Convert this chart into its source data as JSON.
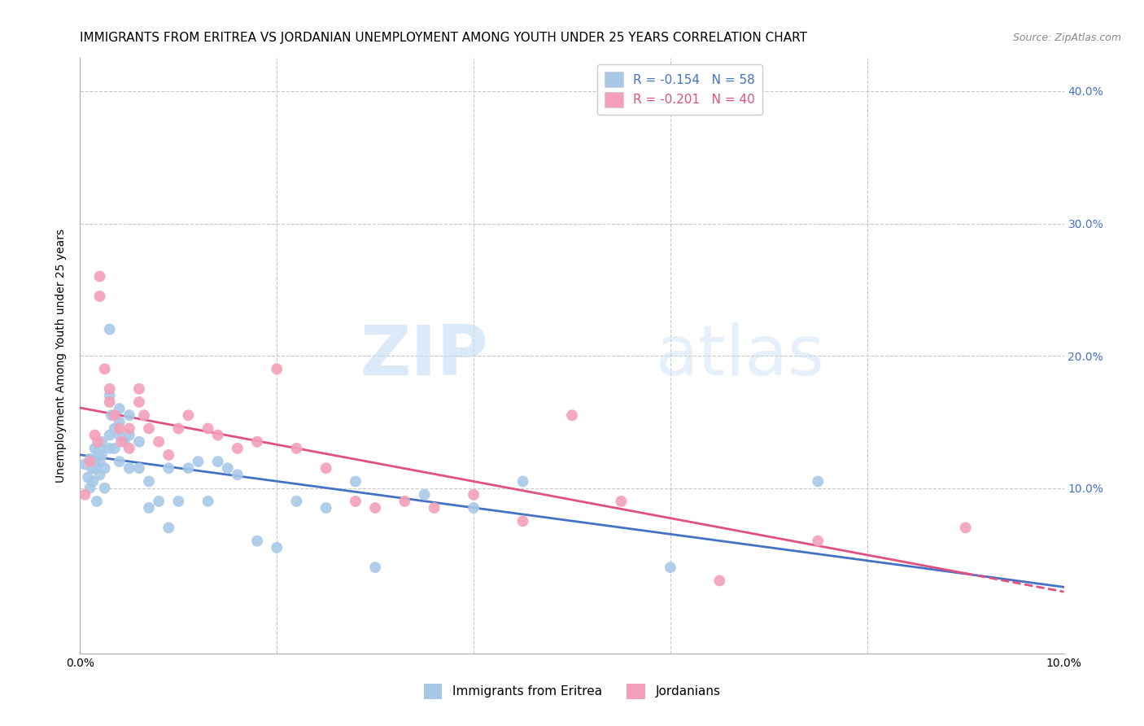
{
  "title": "IMMIGRANTS FROM ERITREA VS JORDANIAN UNEMPLOYMENT AMONG YOUTH UNDER 25 YEARS CORRELATION CHART",
  "source": "Source: ZipAtlas.com",
  "ylabel": "Unemployment Among Youth under 25 years",
  "xlim": [
    0.0,
    0.1
  ],
  "ylim": [
    -0.025,
    0.425
  ],
  "xticks": [
    0.0,
    0.02,
    0.04,
    0.06,
    0.08,
    0.1
  ],
  "xtick_labels_show": [
    "0.0%",
    "",
    "",
    "",
    "",
    "10.0%"
  ],
  "yticks": [
    0.0,
    0.1,
    0.2,
    0.3,
    0.4
  ],
  "ytick_labels_right": [
    "",
    "10.0%",
    "20.0%",
    "30.0%",
    "40.0%"
  ],
  "legend_label1": "R = -0.154   N = 58",
  "legend_label2": "R = -0.201   N = 40",
  "legend_series1": "Immigrants from Eritrea",
  "legend_series2": "Jordanians",
  "color_blue": "#a8c8e8",
  "color_pink": "#f4a0b8",
  "color_blue_text": "#4472c4",
  "color_pink_text": "#e05080",
  "trend_blue": "#4472c4",
  "trend_pink": "#e05080",
  "blue_points_x": [
    0.0005,
    0.0008,
    0.001,
    0.001,
    0.0012,
    0.0013,
    0.0015,
    0.0015,
    0.0016,
    0.0017,
    0.0018,
    0.002,
    0.002,
    0.002,
    0.0022,
    0.0022,
    0.0025,
    0.0025,
    0.003,
    0.003,
    0.003,
    0.003,
    0.0032,
    0.0035,
    0.0035,
    0.004,
    0.004,
    0.004,
    0.004,
    0.0045,
    0.005,
    0.005,
    0.005,
    0.006,
    0.006,
    0.007,
    0.007,
    0.008,
    0.009,
    0.009,
    0.01,
    0.011,
    0.012,
    0.013,
    0.014,
    0.015,
    0.016,
    0.018,
    0.02,
    0.022,
    0.025,
    0.028,
    0.03,
    0.035,
    0.04,
    0.045,
    0.06,
    0.075
  ],
  "blue_points_y": [
    0.118,
    0.108,
    0.122,
    0.1,
    0.115,
    0.105,
    0.13,
    0.12,
    0.115,
    0.09,
    0.125,
    0.13,
    0.12,
    0.11,
    0.135,
    0.125,
    0.115,
    0.1,
    0.22,
    0.17,
    0.14,
    0.13,
    0.155,
    0.145,
    0.13,
    0.16,
    0.15,
    0.14,
    0.12,
    0.135,
    0.155,
    0.14,
    0.115,
    0.135,
    0.115,
    0.105,
    0.085,
    0.09,
    0.115,
    0.07,
    0.09,
    0.115,
    0.12,
    0.09,
    0.12,
    0.115,
    0.11,
    0.06,
    0.055,
    0.09,
    0.085,
    0.105,
    0.04,
    0.095,
    0.085,
    0.105,
    0.04,
    0.105
  ],
  "pink_points_x": [
    0.0005,
    0.001,
    0.0015,
    0.0018,
    0.002,
    0.002,
    0.0025,
    0.003,
    0.003,
    0.0035,
    0.004,
    0.0042,
    0.005,
    0.005,
    0.006,
    0.006,
    0.0065,
    0.007,
    0.008,
    0.009,
    0.01,
    0.011,
    0.013,
    0.014,
    0.016,
    0.018,
    0.02,
    0.022,
    0.025,
    0.028,
    0.03,
    0.033,
    0.036,
    0.04,
    0.045,
    0.05,
    0.055,
    0.065,
    0.075,
    0.09
  ],
  "pink_points_y": [
    0.095,
    0.12,
    0.14,
    0.135,
    0.26,
    0.245,
    0.19,
    0.175,
    0.165,
    0.155,
    0.145,
    0.135,
    0.145,
    0.13,
    0.175,
    0.165,
    0.155,
    0.145,
    0.135,
    0.125,
    0.145,
    0.155,
    0.145,
    0.14,
    0.13,
    0.135,
    0.19,
    0.13,
    0.115,
    0.09,
    0.085,
    0.09,
    0.085,
    0.095,
    0.075,
    0.155,
    0.09,
    0.03,
    0.06,
    0.07
  ],
  "watermark_zip": "ZIP",
  "watermark_atlas": "atlas",
  "background_color": "#ffffff",
  "grid_color": "#c8c8c8",
  "title_fontsize": 11,
  "axis_label_fontsize": 10,
  "tick_fontsize": 10
}
